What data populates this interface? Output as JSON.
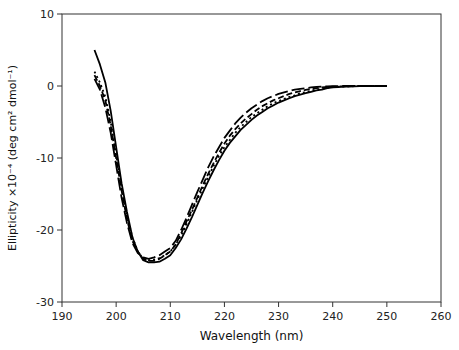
{
  "chart_data": {
    "type": "line",
    "xlabel": "Wavelength (nm)",
    "ylabel": "Ellipticity ×10⁻⁴ (deg cm² dmol⁻¹)",
    "xlim": [
      190,
      260
    ],
    "ylim": [
      -30,
      10
    ],
    "xticks": [
      190,
      200,
      210,
      220,
      230,
      240,
      250,
      260
    ],
    "yticks": [
      -30,
      -20,
      -10,
      0,
      10
    ],
    "grid": false,
    "x": [
      196,
      197,
      198,
      199,
      200,
      201,
      202,
      203,
      204,
      205,
      206,
      207,
      208,
      209,
      210,
      211,
      212,
      213,
      214,
      215,
      216,
      217,
      218,
      219,
      220,
      221,
      222,
      223,
      224,
      225,
      226,
      227,
      228,
      229,
      230,
      231,
      232,
      233,
      234,
      235,
      236,
      237,
      238,
      239,
      240,
      241,
      242,
      243,
      244,
      245,
      246,
      247,
      248,
      249,
      250
    ],
    "series": [
      {
        "color": "#000000",
        "line_style": "longdashed",
        "values": [
          1.0,
          -0.5,
          -3.0,
          -6.5,
          -11.0,
          -15.5,
          -19.0,
          -21.8,
          -23.2,
          -23.8,
          -24.0,
          -23.8,
          -23.5,
          -23.0,
          -22.5,
          -21.5,
          -20.0,
          -18.3,
          -16.5,
          -14.7,
          -13.0,
          -11.3,
          -9.8,
          -8.5,
          -7.2,
          -6.2,
          -5.2,
          -4.4,
          -3.7,
          -3.1,
          -2.6,
          -2.1,
          -1.7,
          -1.4,
          -1.1,
          -0.9,
          -0.7,
          -0.5,
          -0.4,
          -0.3,
          -0.2,
          -0.13,
          -0.08,
          -0.05,
          -0.03,
          -0.01,
          0.0,
          0.0,
          0.0,
          0.0,
          0.0,
          0.0,
          0.0,
          0.0,
          0.0
        ]
      },
      {
        "color": "#000000",
        "line_style": "dashed",
        "values": [
          1.5,
          0.0,
          -2.0,
          -5.5,
          -10.0,
          -14.5,
          -18.5,
          -21.5,
          -23.0,
          -24.0,
          -24.3,
          -24.3,
          -24.0,
          -23.5,
          -23.0,
          -22.0,
          -20.5,
          -18.8,
          -17.2,
          -15.5,
          -13.8,
          -12.2,
          -10.7,
          -9.3,
          -8.0,
          -6.9,
          -6.0,
          -5.2,
          -4.5,
          -3.9,
          -3.3,
          -2.8,
          -2.4,
          -2.0,
          -1.7,
          -1.4,
          -1.1,
          -0.9,
          -0.7,
          -0.55,
          -0.4,
          -0.3,
          -0.2,
          -0.14,
          -0.1,
          -0.07,
          -0.05,
          -0.03,
          -0.02,
          -0.01,
          0.0,
          0.0,
          0.0,
          0.0,
          0.0
        ]
      },
      {
        "color": "#000000",
        "line_style": "dotted",
        "values": [
          2.0,
          0.5,
          -1.5,
          -5.0,
          -9.5,
          -14.0,
          -18.0,
          -21.0,
          -23.0,
          -24.0,
          -24.2,
          -24.1,
          -23.9,
          -23.5,
          -23.0,
          -22.0,
          -20.8,
          -19.2,
          -17.5,
          -15.8,
          -14.2,
          -12.6,
          -11.1,
          -9.7,
          -8.5,
          -7.5,
          -6.5,
          -5.7,
          -5.0,
          -4.3,
          -3.8,
          -3.3,
          -2.8,
          -2.4,
          -2.1,
          -1.8,
          -1.5,
          -1.3,
          -1.0,
          -0.85,
          -0.65,
          -0.5,
          -0.37,
          -0.25,
          -0.17,
          -0.12,
          -0.08,
          -0.05,
          -0.03,
          -0.01,
          0.0,
          0.0,
          0.0,
          0.0,
          0.0
        ]
      },
      {
        "color": "#000000",
        "line_style": "solid",
        "values": [
          5.0,
          3.0,
          0.5,
          -3.5,
          -8.5,
          -13.5,
          -17.5,
          -21.0,
          -23.0,
          -24.2,
          -24.5,
          -24.5,
          -24.4,
          -24.0,
          -23.5,
          -22.5,
          -21.3,
          -19.8,
          -18.2,
          -16.5,
          -14.8,
          -13.2,
          -11.7,
          -10.3,
          -9.0,
          -7.9,
          -7.0,
          -6.1,
          -5.4,
          -4.7,
          -4.1,
          -3.6,
          -3.1,
          -2.7,
          -2.3,
          -2.0,
          -1.7,
          -1.4,
          -1.2,
          -1.0,
          -0.8,
          -0.6,
          -0.5,
          -0.3,
          -0.2,
          -0.15,
          -0.1,
          -0.07,
          -0.04,
          -0.02,
          -0.01,
          -0.01,
          0.0,
          0.0,
          0.0
        ]
      }
    ]
  }
}
